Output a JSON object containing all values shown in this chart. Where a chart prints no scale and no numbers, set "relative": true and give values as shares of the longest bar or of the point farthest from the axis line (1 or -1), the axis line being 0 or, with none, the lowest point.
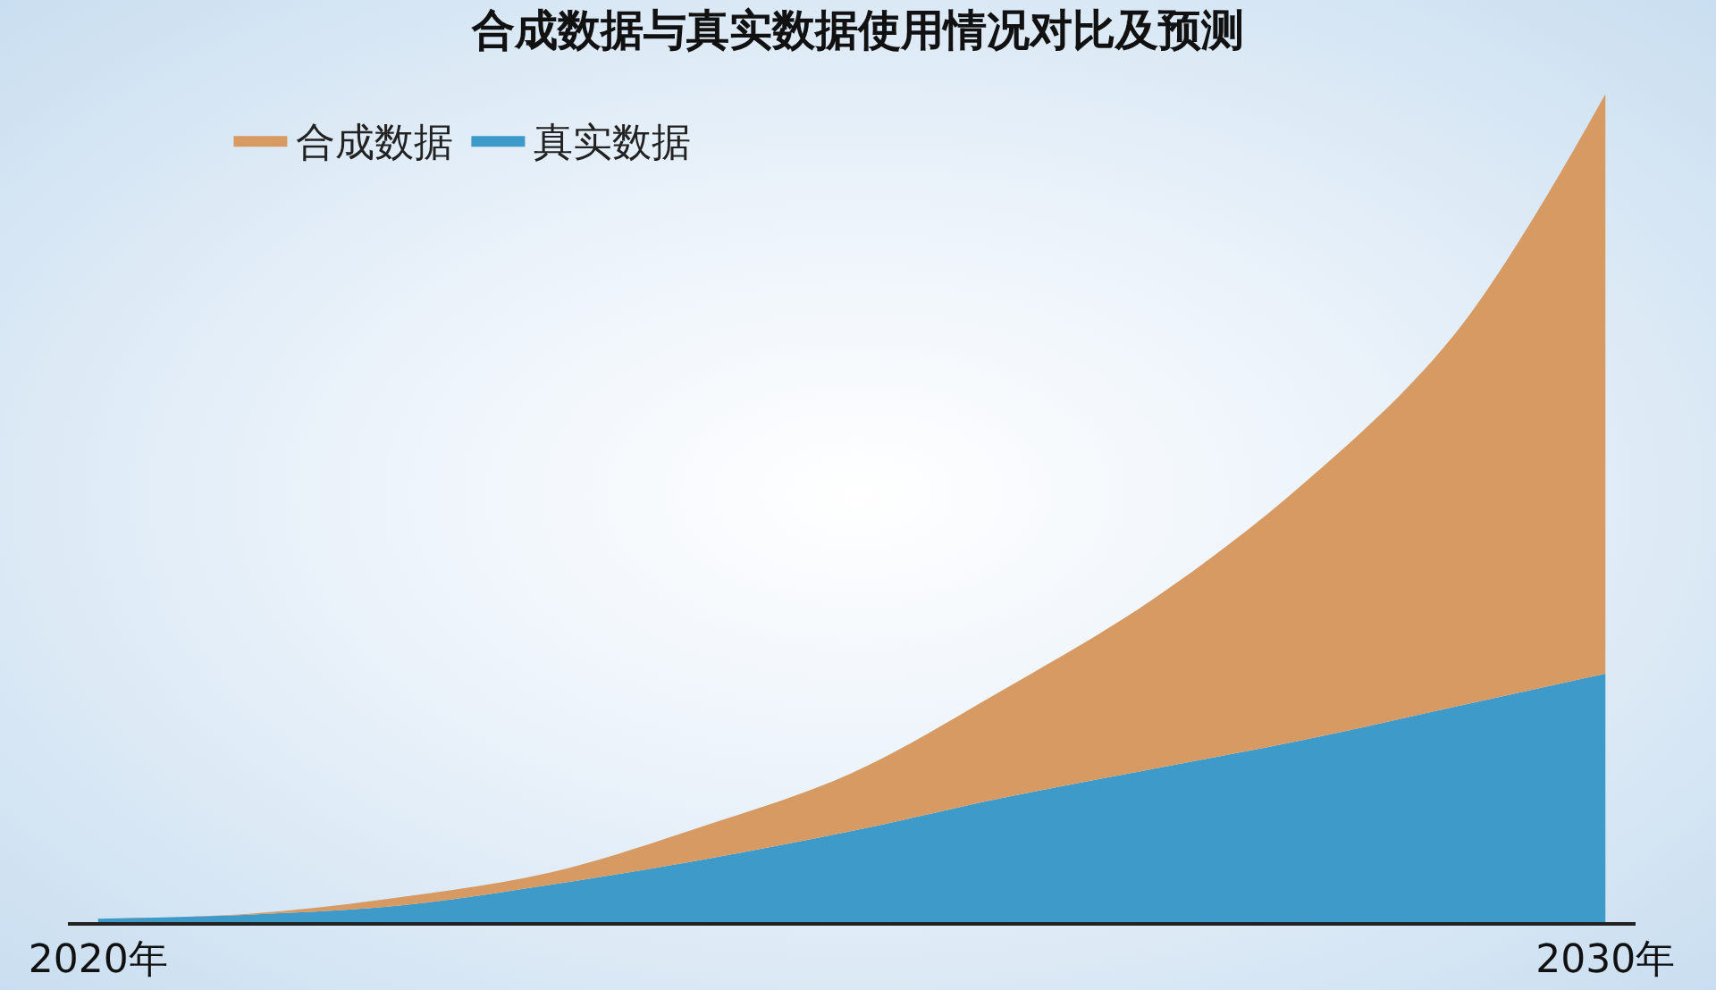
{
  "chart_data": {
    "type": "area",
    "title": "合成数据与真实数据使用情况对比及预测",
    "relative": true,
    "stacked": true,
    "legend": "top left",
    "x": [
      2020,
      2021,
      2022,
      2023,
      2024,
      2025,
      2026,
      2027,
      2028,
      2029,
      2030
    ],
    "xlim": [
      2019.8,
      2030.2
    ],
    "xticks": [
      {
        "value": 2020,
        "label": "2020年"
      },
      {
        "value": 2030,
        "label": "2030年"
      }
    ],
    "series": [
      {
        "name": "真实数据",
        "color": "#3d9ac9",
        "values": [
          0.004,
          0.009,
          0.02,
          0.045,
          0.075,
          0.11,
          0.15,
          0.185,
          0.22,
          0.26,
          0.3
        ]
      },
      {
        "name": "合成数据",
        "color": "#d69a62",
        "values": [
          0,
          0.001,
          0.01,
          0.015,
          0.04,
          0.07,
          0.13,
          0.205,
          0.31,
          0.45,
          0.7
        ]
      }
    ]
  }
}
